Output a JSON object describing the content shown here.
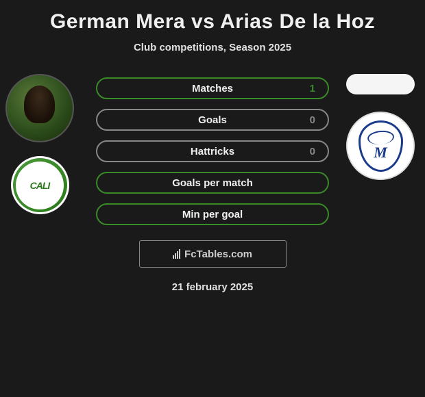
{
  "header": {
    "title": "German Mera vs Arias De la Hoz",
    "subtitle": "Club competitions, Season 2025"
  },
  "player_left": {
    "name": "German Mera",
    "club": "Deportivo Cali",
    "club_abbrev": "CALI",
    "club_color": "#3a8a2a"
  },
  "player_right": {
    "name": "Arias De la Hoz",
    "club": "Millonarios",
    "club_color": "#1a3a8a"
  },
  "stats": [
    {
      "label": "Matches",
      "value": "1",
      "border_color": "#3a8a2a",
      "value_color": "#3a8a2a"
    },
    {
      "label": "Goals",
      "value": "0",
      "border_color": "#888888",
      "value_color": "#888888"
    },
    {
      "label": "Hattricks",
      "value": "0",
      "border_color": "#888888",
      "value_color": "#888888"
    },
    {
      "label": "Goals per match",
      "value": "",
      "border_color": "#3a8a2a",
      "value_color": "#3a8a2a"
    },
    {
      "label": "Min per goal",
      "value": "",
      "border_color": "#3a8a2a",
      "value_color": "#3a8a2a"
    }
  ],
  "watermark": {
    "text": "FcTables.com"
  },
  "date": "21 february 2025",
  "styling": {
    "background_color": "#1a1a1a",
    "title_color": "#f0f0f0",
    "title_fontsize": 30,
    "subtitle_fontsize": 15,
    "pill_width": 340,
    "pill_height": 32,
    "pill_gap": 14,
    "pill_border_radius": 16,
    "avatar_diameter": 100,
    "logo_diameter": 85
  }
}
